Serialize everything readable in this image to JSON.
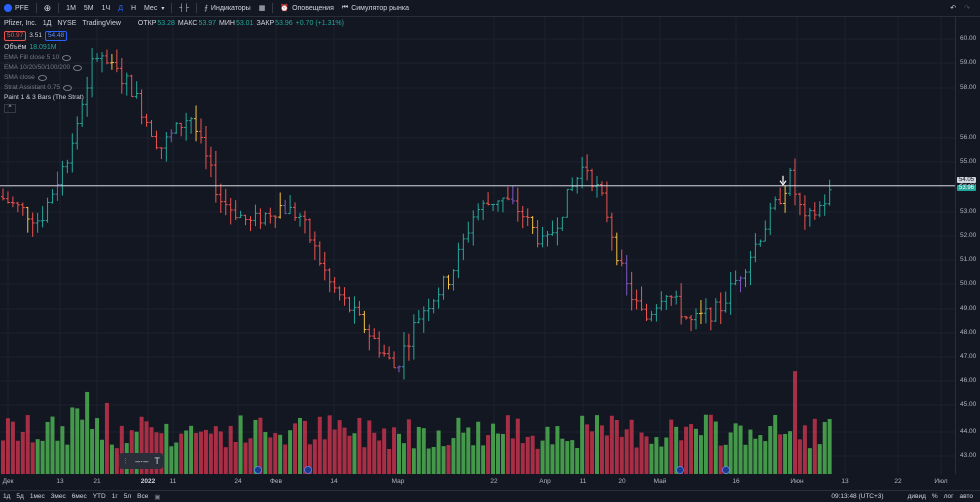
{
  "toolbar": {
    "symbol": "PFE",
    "timeframes": [
      "1М",
      "5М",
      "1Ч",
      "Д",
      "Н",
      "Мес"
    ],
    "active_timeframe": "Д",
    "indicators_label": "Индикаторы",
    "alerts_label": "Оповещения",
    "replay_label": "Симулятор рынка"
  },
  "legend": {
    "title": "Pfizer, Inc.",
    "interval": "1Д",
    "exchange": "NYSE",
    "source": "TradingView",
    "open_label": "ОТКР",
    "open": "53.28",
    "high_label": "МАКС",
    "high": "53.97",
    "low_label": "МИН",
    "low": "53.01",
    "close_label": "ЗАКР",
    "close": "53.96",
    "change": "+0.70 (+1.31%)",
    "bid": "50.97",
    "spread": "3.51",
    "ask": "54.48",
    "volume_label": "Объём",
    "volume": "18.091M",
    "indicators": [
      "EMA Fill close 5 10",
      "EMA 10/20/50/100/200",
      "SMA close",
      "Strat Assistant 0.75",
      "Paint 1 & 3 Bars (The Strat)"
    ],
    "collapse_icon": "^"
  },
  "price_axis": {
    "ticks": [
      "60.00",
      "59.00",
      "58.00",
      "56.00",
      "55.00",
      "54.00",
      "53.00",
      "52.00",
      "51.00",
      "50.00",
      "49.00",
      "48.00",
      "47.00",
      "46.00",
      "45.00",
      "44.00",
      "43.00"
    ],
    "tag_line": "54.05",
    "tag_last": "53.96"
  },
  "time_axis": {
    "ticks": [
      "Дек",
      "13",
      "21",
      "2022",
      "11",
      "24",
      "Фев",
      "14",
      "Мар",
      "22",
      "Апр",
      "11",
      "20",
      "Май",
      "16",
      "Июн",
      "13",
      "22",
      "Июл"
    ]
  },
  "bottombar": {
    "ranges": [
      "1д",
      "5д",
      "1мес",
      "3мес",
      "6мес",
      "YTD",
      "1г",
      "5л",
      "Все"
    ],
    "time": "09:13:48 (UTC+3)",
    "options": [
      "дивид",
      "%",
      "лог",
      "авто"
    ]
  },
  "colors": {
    "up": "#26a69a",
    "down": "#ef5350",
    "accent": "#2962ff",
    "hline": "#d1d4dc",
    "vol_up": "#4caf50",
    "vol_down": "#c2334a"
  },
  "icons": [
    "plus-icon",
    "candle-type-icon",
    "indicators-icon",
    "templates-icon",
    "alert-icon",
    "replay-icon",
    "undo-icon",
    "redo-icon",
    "calendar-icon",
    "gear-icon",
    "eye-icon",
    "lock-icon",
    "text-icon"
  ]
}
